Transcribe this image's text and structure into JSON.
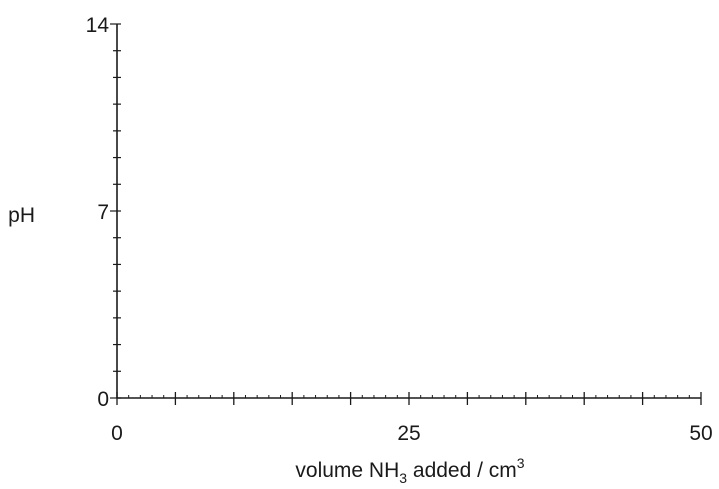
{
  "chart_data": {
    "type": "line",
    "title": "",
    "series": [],
    "xlabel": {
      "prefix": "volume NH",
      "subscript": "3",
      "middle": " added / cm",
      "superscript": "3"
    },
    "ylabel": "pH",
    "xlim": [
      0,
      50
    ],
    "ylim": [
      0,
      14
    ],
    "x_tick_labels": [
      {
        "value": 0,
        "label": "0"
      },
      {
        "value": 25,
        "label": "25"
      },
      {
        "value": 50,
        "label": "50"
      }
    ],
    "y_tick_labels": [
      {
        "value": 0,
        "label": "0"
      },
      {
        "value": 7,
        "label": "7"
      },
      {
        "value": 14,
        "label": "14"
      }
    ],
    "x_major_ticks": [
      0,
      5,
      10,
      15,
      20,
      25,
      30,
      35,
      40,
      45,
      50
    ],
    "x_minor_step": 1,
    "y_tick_step": 1,
    "grid": false,
    "axis_color": "#1a1a1a"
  }
}
